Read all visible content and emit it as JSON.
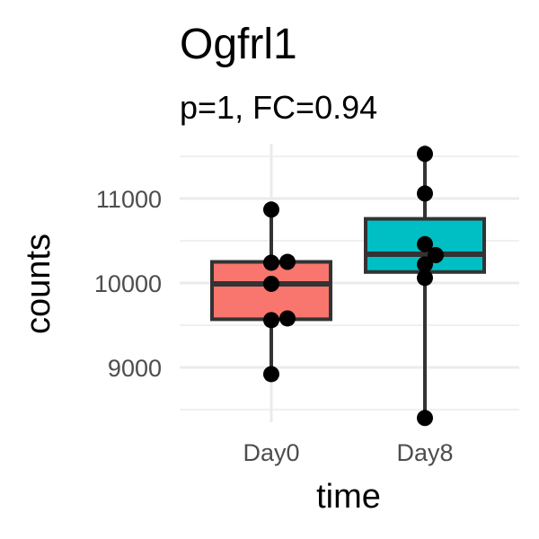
{
  "chart_data": {
    "type": "box",
    "title": "Ogfrl1",
    "subtitle": "p=1, FC=0.94",
    "xlabel": "time",
    "ylabel": "counts",
    "ylim": [
      8350,
      11650
    ],
    "yticks": [
      9000,
      10000,
      11000
    ],
    "ytick_labels": [
      "9000",
      "10000",
      "11000"
    ],
    "grid": true,
    "legend": "none",
    "categories": [
      "Day0",
      "Day8"
    ],
    "boxes": [
      {
        "name": "Day0",
        "color": "#F8766D",
        "whisker_low": 8920,
        "q1": 9570,
        "median": 9990,
        "q3": 10250,
        "whisker_high": 10870,
        "points": [
          10870,
          10240,
          10250,
          9990,
          9560,
          9580,
          8920
        ]
      },
      {
        "name": "Day8",
        "color": "#00BFC4",
        "whisker_low": 8400,
        "q1": 10130,
        "median": 10340,
        "q3": 10760,
        "whisker_high": 11530,
        "points": [
          11530,
          11060,
          10460,
          10330,
          10220,
          10060,
          8400
        ]
      }
    ]
  }
}
